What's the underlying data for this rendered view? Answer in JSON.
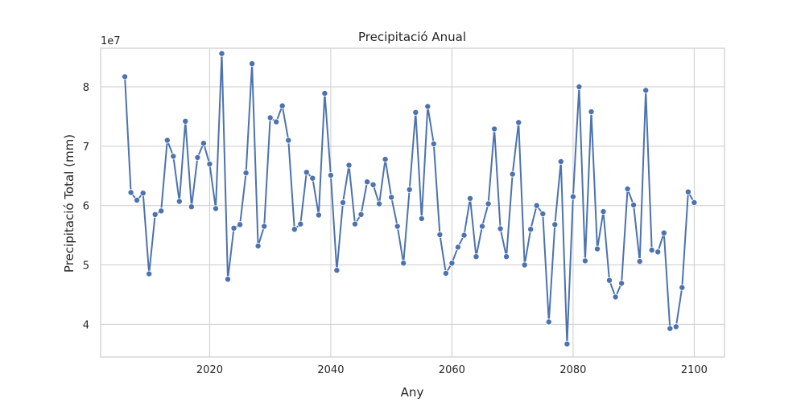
{
  "chart_data": {
    "type": "line",
    "title": "Precipitació Anual",
    "xlabel": "Any",
    "ylabel": "Precipitació Total (mm)",
    "y_offset_label": "1e7",
    "y_multiplier": 10000000,
    "xlim": [
      2002,
      2105
    ],
    "ylim": [
      34500000,
      86500000
    ],
    "xticks": [
      2020,
      2040,
      2060,
      2080,
      2100
    ],
    "yticks": [
      40000000,
      50000000,
      60000000,
      70000000,
      80000000
    ],
    "ytick_labels": [
      "4",
      "5",
      "6",
      "7",
      "8"
    ],
    "grid": true,
    "legend": "none",
    "colors": {
      "line": "#4c72b0",
      "grid": "#cccccc",
      "background": "#ffffff"
    },
    "series": [
      {
        "x": [
          2006,
          2007,
          2008,
          2009,
          2010,
          2011,
          2012,
          2013,
          2014,
          2015,
          2016,
          2017,
          2018,
          2019,
          2020,
          2021,
          2022,
          2023,
          2024,
          2025,
          2026,
          2027,
          2028,
          2029,
          2030,
          2031,
          2032,
          2033,
          2034,
          2035,
          2036,
          2037,
          2038,
          2039,
          2040,
          2041,
          2042,
          2043,
          2044,
          2045,
          2046,
          2047,
          2048,
          2049,
          2050,
          2051,
          2052,
          2053,
          2054,
          2055,
          2056,
          2057,
          2058,
          2059,
          2060,
          2061,
          2062,
          2063,
          2064,
          2065,
          2066,
          2067,
          2068,
          2069,
          2070,
          2071,
          2072,
          2073,
          2074,
          2075,
          2076,
          2077,
          2078,
          2079,
          2080,
          2081,
          2082,
          2083,
          2084,
          2085,
          2086,
          2087,
          2088,
          2089,
          2090,
          2091,
          2092,
          2093,
          2094,
          2095,
          2096,
          2097,
          2098,
          2099,
          2100
        ],
        "values": [
          81700000,
          62200000,
          60900000,
          62100000,
          48500000,
          58500000,
          59100000,
          71000000,
          68300000,
          60700000,
          74200000,
          59800000,
          68100000,
          70500000,
          67000000,
          59500000,
          85600000,
          47600000,
          56200000,
          56800000,
          65500000,
          83900000,
          53200000,
          56500000,
          74800000,
          74100000,
          76800000,
          71000000,
          56000000,
          56900000,
          65600000,
          64600000,
          58400000,
          78900000,
          65100000,
          49100000,
          60500000,
          66800000,
          56900000,
          58500000,
          64000000,
          63500000,
          60300000,
          67800000,
          61400000,
          56500000,
          50300000,
          62700000,
          75700000,
          57800000,
          76700000,
          70400000,
          55100000,
          48600000,
          50300000,
          53000000,
          55000000,
          61200000,
          51400000,
          56500000,
          60300000,
          72900000,
          56100000,
          51400000,
          65300000,
          74000000,
          50000000,
          56000000,
          60000000,
          58600000,
          40400000,
          56800000,
          67400000,
          36700000,
          61500000,
          80000000,
          50700000,
          75800000,
          52700000,
          59000000,
          47400000,
          44600000,
          46900000,
          62800000,
          60100000,
          50600000,
          79400000,
          52500000,
          52200000,
          55400000,
          39300000,
          39600000,
          46200000,
          62300000,
          60500000
        ]
      }
    ]
  }
}
